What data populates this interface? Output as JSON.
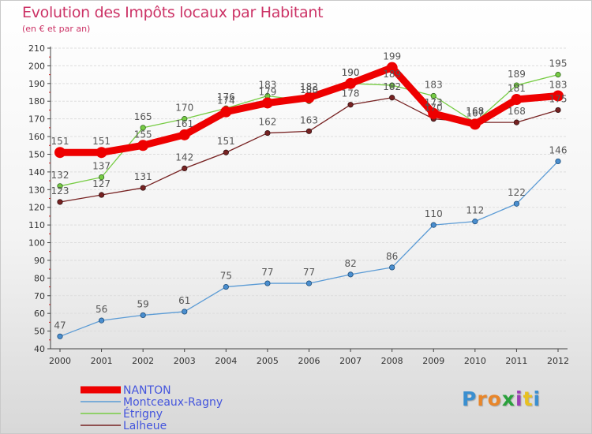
{
  "title": "Evolution des Impôts locaux par Habitant",
  "subtitle": "(en € et par an)",
  "logo_letters": [
    "P",
    "r",
    "o",
    "x",
    "i",
    "t",
    "i"
  ],
  "logo_colors": [
    "#3a8fd0",
    "#e8862a",
    "#e8862a",
    "#2aa13c",
    "#9b3fb5",
    "#e8c020",
    "#3a8fd0"
  ],
  "chart_data": {
    "type": "line",
    "title": "Evolution des Impôts locaux par Habitant",
    "ylabel": "(en € et par an)",
    "xlabel": "",
    "categories": [
      "2000",
      "2001",
      "2002",
      "2003",
      "2004",
      "2005",
      "2006",
      "2007",
      "2008",
      "2009",
      "2010",
      "2011",
      "2012"
    ],
    "ylim": [
      40,
      210
    ],
    "yticks": [
      40,
      50,
      60,
      70,
      80,
      90,
      100,
      110,
      120,
      130,
      140,
      150,
      160,
      170,
      180,
      190,
      200,
      210
    ],
    "grid": "horizontal",
    "legend_position": "bottom-left",
    "series": [
      {
        "name": "NANTON",
        "color": "#ee0000",
        "values": [
          151,
          151,
          155,
          161,
          174,
          179,
          182,
          190,
          199,
          173,
          167,
          181,
          183
        ]
      },
      {
        "name": "Montceaux-Ragny",
        "color": "#5b9bd5",
        "values": [
          47,
          56,
          59,
          61,
          75,
          77,
          77,
          82,
          86,
          110,
          112,
          122,
          146
        ]
      },
      {
        "name": "Étrigny",
        "color": "#77cc44",
        "values": [
          132,
          137,
          165,
          170,
          176,
          183,
          180,
          190,
          189,
          183,
          168,
          189,
          195
        ]
      },
      {
        "name": "Lalheue",
        "color": "#772222",
        "values": [
          123,
          127,
          131,
          142,
          151,
          162,
          163,
          178,
          182,
          170,
          168,
          168,
          175
        ]
      }
    ]
  }
}
